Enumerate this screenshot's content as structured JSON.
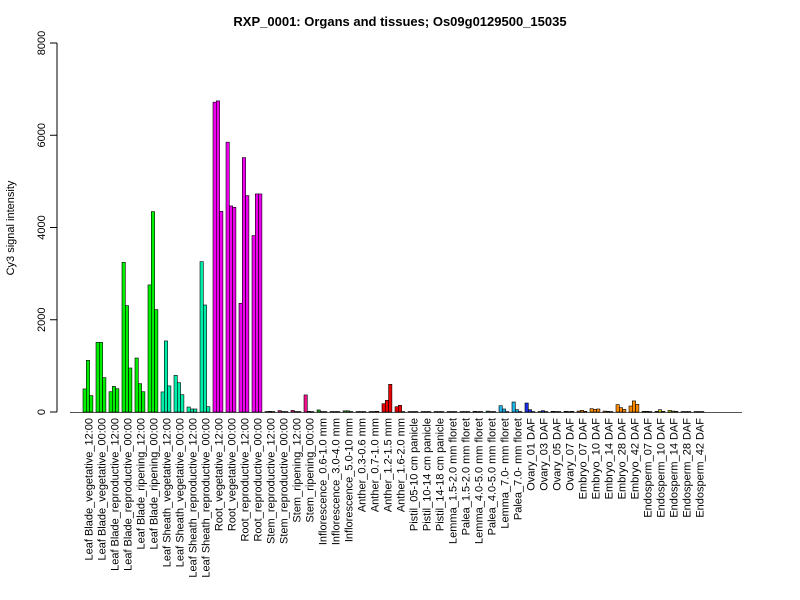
{
  "chart_data": {
    "type": "bar",
    "title": "RXP_0001: Organs and tissues; Os09g0129500_15035",
    "xlabel": "",
    "ylabel": "Cy3 signal intensity",
    "ylim": [
      0,
      8000
    ],
    "yticks": [
      0,
      2000,
      4000,
      6000,
      8000
    ],
    "grid": false,
    "categories": [
      "Leaf Blade_vegetative_12:00",
      "Leaf Blade_vegetative_00:00",
      "Leaf Blade_reproductive_12:00",
      "Leaf Blade_reproductive_00:00",
      "Leaf Blade_ripening_12:00",
      "Leaf Blade_ripening_00:00",
      "Leaf Sheath_vegetative_12:00",
      "Leaf Sheath_vegetative_00:00",
      "Leaf Sheath_reproductive_12:00",
      "Leaf Sheath_reproductive_00:00",
      "Root_vegetative_12:00",
      "Root_vegetative_00:00",
      "Root_reproductive_12:00",
      "Root_reproductive_00:00",
      "Stem_reproductive_12:00",
      "Stem_reproductive_00:00",
      "Stem_ripening_12:00",
      "Stem_ripening_00:00",
      "Inflorescence_0.6-1.0 mm",
      "Inflorescence_3.0-4.0 mm",
      "Inflorescence_5.0-10 mm",
      "Anther_0.3-0.6 mm",
      "Anther_0.7-1.0 mm",
      "Anther_1.2-1.5 mm",
      "Anther_1.6-2.0 mm",
      "Pistil_05-10 cm panicle",
      "Pistil_10-14 cm panicle",
      "Pistil_14-18 cm panicle",
      "Lemma_1.5-2.0 mm floret",
      "Palea_1.5-2.0 mm floret",
      "Lemma_4.0-5.0 mm floret",
      "Palea_4.0-5.0 mm floret",
      "Lemma_7.0- mm floret",
      "Palea_7.0- mm floret",
      "Ovary_01 DAF",
      "Ovary_03 DAF",
      "Ovary_05 DAF",
      "Ovary_07 DAF",
      "Embryo_07 DAF",
      "Embryo_10 DAF",
      "Embryo_14 DAF",
      "Embryo_28 DAF",
      "Embryo_42 DAF",
      "Endosperm_07 DAF",
      "Endosperm_10 DAF",
      "Endosperm_14 DAF",
      "Endosperm_28 DAF",
      "Endosperm_42 DAF"
    ],
    "values": [
      [
        500,
        1120,
        355
      ],
      [
        1510,
        1510,
        745
      ],
      [
        440,
        555,
        505
      ],
      [
        3245,
        2306,
        954
      ],
      [
        1170,
        615,
        440
      ],
      [
        2755,
        4345,
        2220
      ],
      [
        435,
        1540,
        565
      ],
      [
        795,
        636,
        376
      ],
      [
        108,
        65,
        65
      ],
      [
        3260,
        2320,
        115
      ],
      [
        6717,
        6745,
        4352
      ],
      [
        5850,
        4468,
        4439
      ],
      [
        2357,
        5516,
        4692
      ],
      [
        3825,
        4728,
        4728
      ],
      [
        10,
        15,
        10
      ],
      [
        30,
        10,
        10
      ],
      [
        35,
        10,
        10
      ],
      [
        370,
        15,
        10
      ],
      [
        45,
        10,
        10
      ],
      [
        10,
        10,
        10
      ],
      [
        25,
        25,
        10
      ],
      [
        10,
        10,
        10
      ],
      [
        10,
        10,
        15
      ],
      [
        180,
        253,
        600
      ],
      [
        115,
        145,
        10
      ],
      [
        10,
        10,
        10
      ],
      [
        10,
        10,
        10
      ],
      [
        10,
        10,
        10
      ],
      [
        10,
        10,
        10
      ],
      [
        10,
        10,
        10
      ],
      [
        15,
        10,
        10
      ],
      [
        20,
        10,
        10
      ],
      [
        137,
        65,
        10
      ],
      [
        217,
        50,
        10
      ],
      [
        195,
        50,
        10
      ],
      [
        10,
        29,
        10
      ],
      [
        15,
        10,
        10
      ],
      [
        15,
        10,
        15
      ],
      [
        20,
        36,
        15
      ],
      [
        72,
        58,
        65
      ],
      [
        20,
        15,
        10
      ],
      [
        160,
        94,
        58
      ],
      [
        130,
        240,
        166
      ],
      [
        15,
        15,
        10
      ],
      [
        15,
        50,
        15
      ],
      [
        36,
        20,
        15
      ],
      [
        10,
        10,
        10
      ],
      [
        10,
        10,
        10
      ]
    ],
    "colors": [
      "#00ee00",
      "#00ee00",
      "#00ee00",
      "#00ee00",
      "#00ee00",
      "#00ee00",
      "#00eeaa",
      "#00eeaa",
      "#00eeaa",
      "#00eeaa",
      "#ee00ee",
      "#ee00ee",
      "#ee00ee",
      "#ee00ee",
      "#ee1289",
      "#ee1289",
      "#ee1289",
      "#ee1289",
      "#22aa22",
      "#22aa22",
      "#22aa22",
      "#ee0000",
      "#ee0000",
      "#ee0000",
      "#ee0000",
      "#dd99aa",
      "#dd99aa",
      "#dd99aa",
      "#1eb4e8",
      "#1eb4e8",
      "#1eb4e8",
      "#1eb4e8",
      "#1eb4e8",
      "#1eb4e8",
      "#1a2ee0",
      "#1a2ee0",
      "#1a2ee0",
      "#1a2ee0",
      "#ff8c00",
      "#ff8c00",
      "#ff8c00",
      "#ff8c00",
      "#ff8c00",
      "#cccc22",
      "#cccc22",
      "#cccc22",
      "#cccc22",
      "#cccc22"
    ]
  }
}
